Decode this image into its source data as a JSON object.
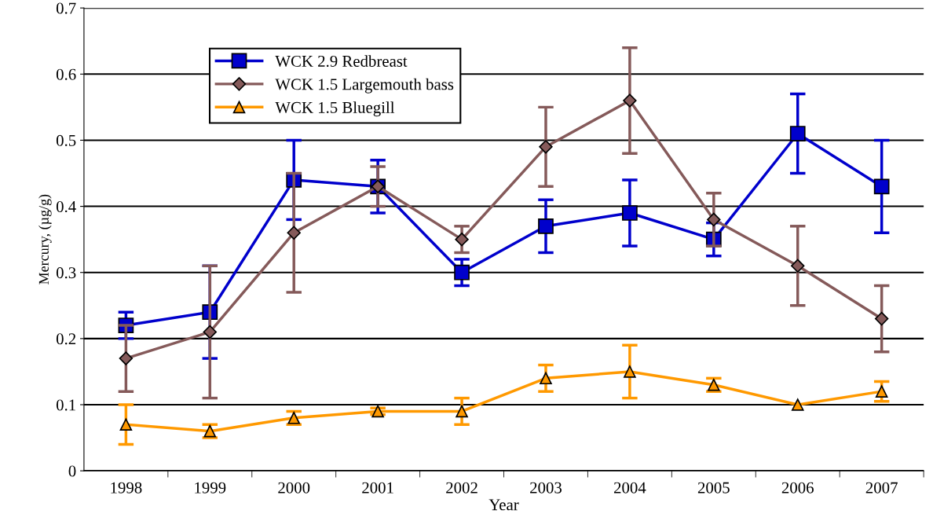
{
  "chart_data": {
    "type": "line",
    "xlabel": "Year",
    "ylabel": "Mercury, (µg/g)",
    "categories": [
      "1998",
      "1999",
      "2000",
      "2001",
      "2002",
      "2003",
      "2004",
      "2005",
      "2006",
      "2007"
    ],
    "ylim": [
      0,
      0.7
    ],
    "yticks": [
      0,
      0.1,
      0.2,
      0.3,
      0.4,
      0.5,
      0.6,
      0.7
    ],
    "grid": "y",
    "legend": "top left",
    "series": [
      {
        "name": "WCK 2.9 Redbreast",
        "color": "#0000cc",
        "marker": "square",
        "values": [
          0.22,
          0.24,
          0.44,
          0.43,
          0.3,
          0.37,
          0.39,
          0.35,
          0.51,
          0.43
        ],
        "errors": [
          0.02,
          0.07,
          0.06,
          0.04,
          0.02,
          0.04,
          0.05,
          0.025,
          0.06,
          0.07
        ]
      },
      {
        "name": "WCK 1.5 Largemouth bass",
        "color": "#855a5a",
        "marker": "diamond",
        "values": [
          0.17,
          0.21,
          0.36,
          0.43,
          0.35,
          0.49,
          0.56,
          0.38,
          0.31,
          0.23
        ],
        "errors": [
          0.05,
          0.1,
          0.09,
          0.03,
          0.02,
          0.06,
          0.08,
          0.04,
          0.06,
          0.05
        ]
      },
      {
        "name": "WCK 1.5 Bluegill",
        "color": "#ff9900",
        "marker": "triangle",
        "values": [
          0.07,
          0.06,
          0.08,
          0.09,
          0.09,
          0.14,
          0.15,
          0.13,
          0.1,
          0.12
        ],
        "errors": [
          0.03,
          0.01,
          0.01,
          0.005,
          0.02,
          0.02,
          0.04,
          0.01,
          null,
          0.015
        ]
      }
    ]
  }
}
